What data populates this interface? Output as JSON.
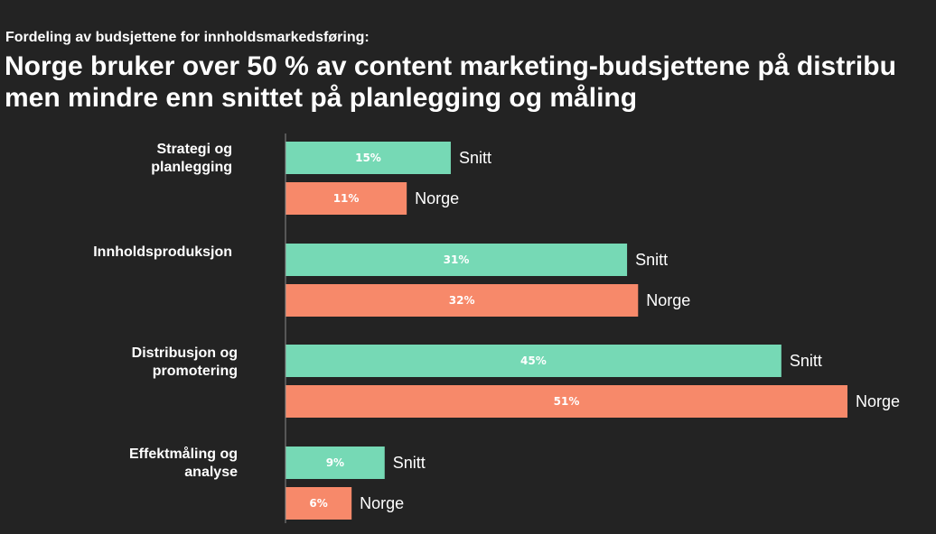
{
  "heading": {
    "subtitle": "Fordeling av budsjettene for innholdsmarkedsføring:",
    "title_line1": "Norge bruker over 50 % av content marketing-budsjettene på distribu",
    "title_line2": "men mindre enn snittet på planlegging og måling"
  },
  "colors": {
    "background": "#232323",
    "snitt": "#76d9b5",
    "norge": "#f7896a",
    "axis": "#8a8a8a"
  },
  "chart_data": {
    "type": "bar",
    "orientation": "horizontal",
    "title": "Norge bruker over 50 % av content marketing-budsjettene på distribu men mindre enn snittet på planlegging og måling",
    "subtitle": "Fordeling av budsjettene for innholdsmarkedsføring:",
    "categories": [
      [
        "Strategi og",
        "planlegging"
      ],
      [
        "Innholdsproduksjon"
      ],
      [
        "Distribusjon og",
        "promotering"
      ],
      [
        "Effektmåling og",
        "analyse"
      ]
    ],
    "series": [
      {
        "name": "Snitt",
        "values": [
          15,
          31,
          45,
          9
        ],
        "labels": [
          "15%",
          "31%",
          "45%",
          "9%"
        ]
      },
      {
        "name": "Norge",
        "values": [
          11,
          32,
          51,
          6
        ],
        "labels": [
          "11%",
          "32%",
          "51%",
          "6%"
        ]
      }
    ],
    "value_unit": "%",
    "xlim": [
      0,
      51
    ],
    "grid": false,
    "legend": "none"
  }
}
